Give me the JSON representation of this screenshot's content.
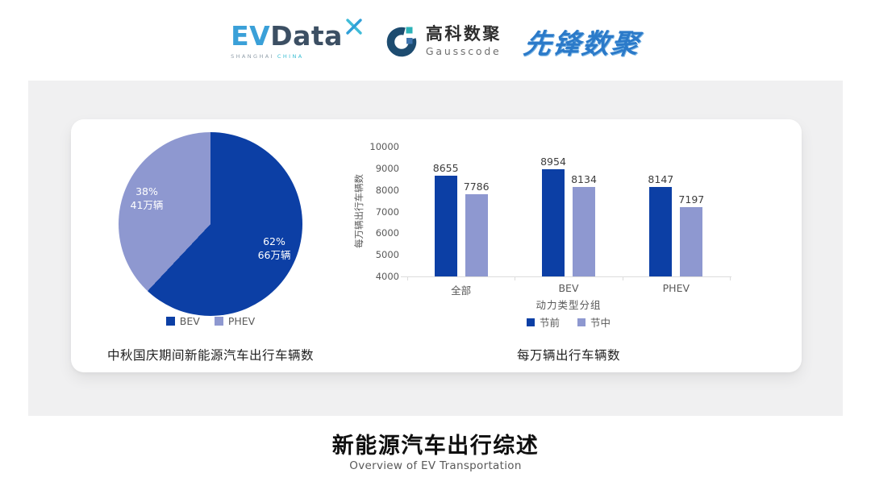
{
  "header": {
    "evdata": {
      "part1": "EV",
      "part2": "Data",
      "tagline_left": "SHANGHAI",
      "tagline_right": "CHINA"
    },
    "gausscode": {
      "name_cn": "高科数聚",
      "name_en": "Gausscode"
    },
    "pioneer": {
      "name": "先锋数聚"
    }
  },
  "colors": {
    "primary_blue": "#0c3fa5",
    "light_periwinkle": "#8e98d0",
    "panel_gray": "#f0f0f1",
    "axis_text": "#595959",
    "value_text": "#3d3d3d"
  },
  "chart_data": [
    {
      "type": "pie",
      "title": "中秋国庆期间新能源汽车出行车辆数",
      "start_angle": "12 o'clock, clockwise",
      "legend_position": "bottom",
      "slices": [
        {
          "label": "BEV",
          "percent": 62,
          "percent_label": "62%",
          "value_label": "66万辆",
          "color": "#0c3fa5"
        },
        {
          "label": "PHEV",
          "percent": 38,
          "percent_label": "38%",
          "value_label": "41万辆",
          "color": "#8e98d0"
        }
      ]
    },
    {
      "type": "bar",
      "title": "每万辆出行车辆数",
      "categories": [
        "全部",
        "BEV",
        "PHEV"
      ],
      "series": [
        {
          "name": "节前",
          "color": "#0c3fa5",
          "values": [
            8655,
            8954,
            8147
          ]
        },
        {
          "name": "节中",
          "color": "#8e98d0",
          "values": [
            7786,
            8134,
            7197
          ]
        }
      ],
      "xlabel": "动力类型分组",
      "ylabel": "每万辆出行车辆数",
      "ylim": [
        4000,
        10000
      ],
      "ytick_step": 1000,
      "grid": false,
      "legend_position": "bottom"
    }
  ],
  "footer": {
    "title": "新能源汽车出行综述",
    "subtitle": "Overview of EV Transportation"
  }
}
